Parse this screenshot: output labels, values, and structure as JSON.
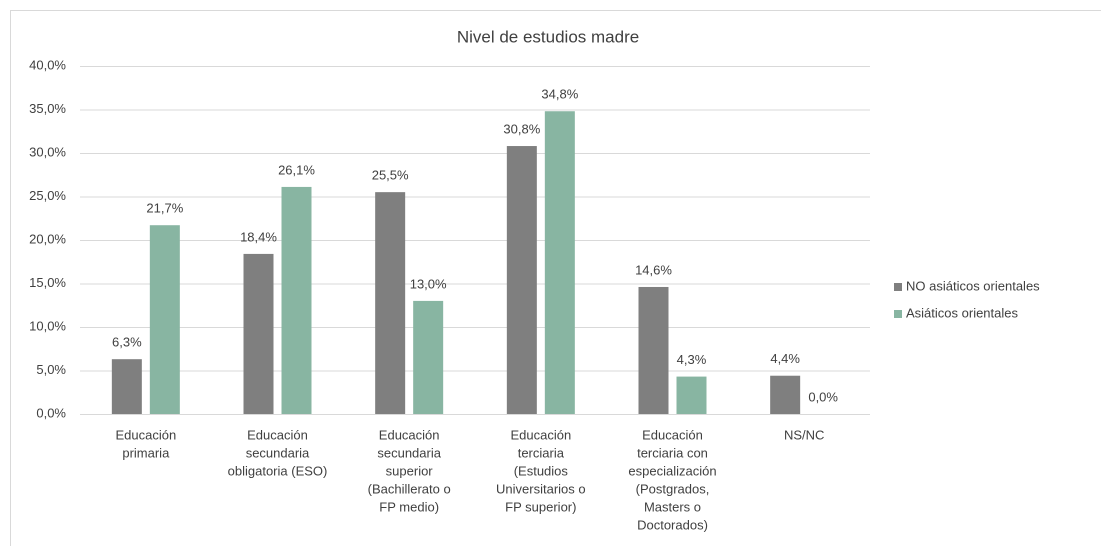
{
  "chart_data": {
    "type": "bar",
    "title": "Nivel de estudios madre",
    "categories": [
      [
        "Educación",
        "primaria"
      ],
      [
        "Educación",
        "secundaria",
        "obligatoria (ESO)"
      ],
      [
        "Educación",
        "secundaria",
        "superior",
        "(Bachillerato o",
        "FP medio)"
      ],
      [
        "Educación",
        "terciaria",
        "(Estudios",
        "Universitarios o",
        "FP superior)"
      ],
      [
        "Educación",
        "terciaria con",
        "especialización",
        "(Postgrados,",
        "Masters o",
        "Doctorados)"
      ],
      [
        "NS/NC"
      ]
    ],
    "series": [
      {
        "name": "NO asiáticos orientales",
        "color": "#7f7f7f",
        "values": [
          6.3,
          18.4,
          25.5,
          30.8,
          14.6,
          4.4
        ],
        "value_labels": [
          "6,3%",
          "18,4%",
          "25,5%",
          "30,8%",
          "14,6%",
          "4,4%"
        ]
      },
      {
        "name": "Asiáticos orientales",
        "color": "#88b5a2",
        "values": [
          21.7,
          26.1,
          13.0,
          34.8,
          4.3,
          0.0
        ],
        "value_labels": [
          "21,7%",
          "26,1%",
          "13,0%",
          "34,8%",
          "4,3%",
          "0,0%"
        ]
      }
    ],
    "ylim": [
      0,
      40
    ],
    "yticks": [
      {
        "value": 0,
        "label": "0,0%"
      },
      {
        "value": 5,
        "label": "5,0%"
      },
      {
        "value": 10,
        "label": "10,0%"
      },
      {
        "value": 15,
        "label": "15,0%"
      },
      {
        "value": 20,
        "label": "20,0%"
      },
      {
        "value": 25,
        "label": "25,0%"
      },
      {
        "value": 30,
        "label": "30,0%"
      },
      {
        "value": 35,
        "label": "35,0%"
      },
      {
        "value": 40,
        "label": "40,0%"
      }
    ],
    "grid": true,
    "legend": "right"
  }
}
